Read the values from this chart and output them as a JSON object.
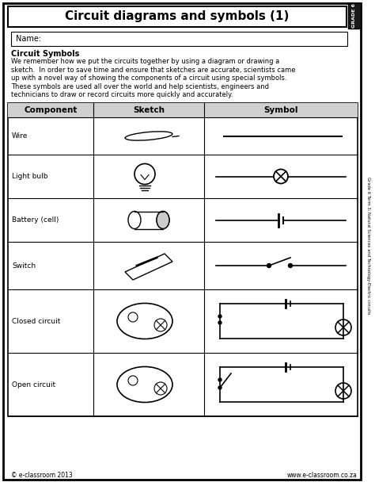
{
  "title": "Circuit diagrams and symbols (1)",
  "grade_label": "GRADE 6",
  "side_label": "Grade 6 Term 3: Natural Sciences and Technology-Electric circuits",
  "name_label": "Name:",
  "section_title": "Circuit Symbols",
  "body_text": "We remember how we put the circuits together by using a diagram or drawing a\nsketch.  In order to save time and ensure that sketches are accurate, scientists came\nup with a novel way of showing the components of a circuit using special symbols.\nThese symbols are used all over the world and help scientists, engineers and\ntechnicians to draw or record circuits more quickly and accurately.",
  "table_headers": [
    "Component",
    "Sketch",
    "Symbol"
  ],
  "rows": [
    "Wire",
    "Light bulb",
    "Battery (cell)",
    "Switch",
    "Closed circuit",
    "Open circuit"
  ],
  "footer_left": "© e-classroom 2013",
  "footer_right": "www.e-classroom.co.za",
  "bg_color": "#ffffff"
}
